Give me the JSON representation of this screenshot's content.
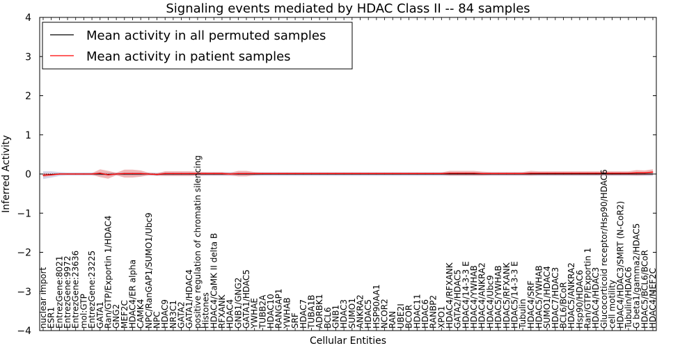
{
  "chart_data": {
    "type": "line",
    "title": "Signaling events mediated by HDAC Class II -- 84 samples",
    "xlabel": "Cellular Entities",
    "ylabel": "Inferred Activity",
    "ylim": [
      -4,
      4
    ],
    "yticks": [
      "4",
      "3",
      "2",
      "1",
      "0",
      "−1",
      "−2",
      "−3",
      "−4"
    ],
    "ytick_values": [
      4,
      3,
      2,
      1,
      0,
      -1,
      -2,
      -3,
      -4
    ],
    "grid": false,
    "legend_position": "top-left",
    "colors": {
      "permuted": "#000000",
      "patient": "#ff0000",
      "patient_band": "#e88a8a",
      "permuted_band": "#b8b8d8",
      "zero_line": "#000000",
      "axes": "#000000"
    },
    "categories": [
      "nuclear import",
      "ESR1",
      "EntrezGene:8021",
      "EntrezGene:9972",
      "EntrezGene:23636",
      "mol:GTP",
      "EntrezGene:23225",
      "GATA1",
      "Ran/GTP/Exportin 1/HDAC4",
      "GNG2",
      "MEF2C",
      "HDAC4/ER alpha",
      "CAMK4",
      "NPC/RanGAP1/SUMO1/Ubc9",
      "NPC",
      "HDAC9",
      "NR3C1",
      "GATA2",
      "GATA1/HDAC4",
      "positive regulation of chromatin silencing",
      "Histones",
      "HDAC4/CaMK II delta B",
      "RFXANK",
      "HDAC4",
      "GNB1/GNG2",
      "GATA1/HDAC5",
      "YWHAE",
      "TUBB2A",
      "HDAC10",
      "RANGAP1",
      "YWHAB",
      "SRF",
      "HDAC7",
      "TUBA1B",
      "ADRBK1",
      "BCL6",
      "GNB1",
      "HDAC3",
      "SUMO1",
      "ANKRA2",
      "HDAC5",
      "HSP90AA1",
      "NCOR2",
      "RAN",
      "UBE2I",
      "BCOR",
      "HDAC11",
      "HDAC6",
      "RANBP2",
      "XPO1",
      "HDAC4/RFXANK",
      "GATA2/HDAC5",
      "HDAC4/14-3-3 E",
      "HDAC4/YWHAB",
      "HDAC4/ANKRA2",
      "HDAC4/Ubc9",
      "HDAC5/YWHAB",
      "HDAC5/RFXANK",
      "HDAC5/14-3-3 E",
      "Tubulin",
      "HDAC4/SRF",
      "HDAC5/YWHAB",
      "SUMO1/HDAC4",
      "HDAC7/HDAC3",
      "BCL6/BCoR",
      "HDAC5/ANKRA2",
      "Hsp90/HDAC6",
      "Ran/GTP/Exportin 1",
      "HDAC4/HDAC3",
      "Glucocorticoid receptor/Hsp90/HDAC6",
      "cell motility",
      "HDAC4/HDAC3/SMRT (N-CoR2)",
      "Tubulin/HDAC6",
      "G beta1/gamma2/HDAC5",
      "HDAC5/BCL6/BCoR",
      "HDAC4/MEF2C"
    ],
    "series": [
      {
        "name": "Mean activity in all permuted samples",
        "color": "#000000",
        "values": [
          -0.03,
          -0.01,
          0,
          0,
          0,
          0,
          0,
          0,
          -0.01,
          0,
          0,
          0,
          0,
          0,
          -0.01,
          0,
          0,
          0,
          0,
          0,
          0,
          0,
          0,
          0,
          0,
          0,
          0,
          0,
          0,
          0,
          0,
          0,
          0,
          0,
          0,
          0,
          0,
          0,
          0,
          0,
          0,
          0,
          0,
          0,
          0,
          0,
          0,
          0,
          0,
          0,
          0,
          0,
          0,
          0,
          0,
          0,
          0,
          0,
          0,
          0,
          0,
          0,
          0,
          0,
          0,
          0,
          0,
          0,
          0,
          0,
          0,
          0,
          0,
          0,
          0,
          0
        ]
      },
      {
        "name": "Mean activity in patient samples",
        "color": "#ff0000",
        "values": [
          -0.03,
          -0.02,
          0,
          0,
          0,
          0,
          0,
          0.02,
          -0.02,
          0,
          0.01,
          0.01,
          0.01,
          0,
          -0.01,
          0.01,
          0.01,
          0.01,
          0.01,
          0.01,
          0.01,
          0.01,
          0.01,
          0,
          0.01,
          0.01,
          0.01,
          0.01,
          0.01,
          0.01,
          0.01,
          0.01,
          0.01,
          0.01,
          0.01,
          0.01,
          0.01,
          0.01,
          0.01,
          0.01,
          0.01,
          0.01,
          0.01,
          0.01,
          0.01,
          0.01,
          0.01,
          0.01,
          0.01,
          0.01,
          0.02,
          0.02,
          0.02,
          0.02,
          0.01,
          0.01,
          0.01,
          0.01,
          0.01,
          0.01,
          0.02,
          0.02,
          0.02,
          0.02,
          0.02,
          0.02,
          0.02,
          0.02,
          0.02,
          0.02,
          0.02,
          0.02,
          0.02,
          0.03,
          0.03,
          0.05
        ]
      }
    ],
    "bands": {
      "patient_halfwidth": [
        0.05,
        0.03,
        0.02,
        0.02,
        0.02,
        0.02,
        0.02,
        0.1,
        0.1,
        0.03,
        0.1,
        0.1,
        0.08,
        0.03,
        0.03,
        0.06,
        0.06,
        0.06,
        0.06,
        0.05,
        0.04,
        0.04,
        0.04,
        0.03,
        0.07,
        0.07,
        0.04,
        0.03,
        0.03,
        0.03,
        0.03,
        0.03,
        0.03,
        0.03,
        0.03,
        0.03,
        0.03,
        0.03,
        0.03,
        0.03,
        0.03,
        0.03,
        0.03,
        0.03,
        0.03,
        0.03,
        0.03,
        0.03,
        0.03,
        0.03,
        0.06,
        0.06,
        0.06,
        0.06,
        0.05,
        0.04,
        0.04,
        0.04,
        0.04,
        0.04,
        0.06,
        0.05,
        0.05,
        0.05,
        0.05,
        0.05,
        0.05,
        0.05,
        0.05,
        0.05,
        0.05,
        0.05,
        0.05,
        0.07,
        0.06,
        0.07
      ],
      "permuted_halfwidth": [
        0.1,
        0.08,
        0.05,
        0.04,
        0.04,
        0.04,
        0.04,
        0.05,
        0.05,
        0.04,
        0.05,
        0.05,
        0.05,
        0.04,
        0.04,
        0.05,
        0.05,
        0.05,
        0.05,
        0.05,
        0.05,
        0.05,
        0.05,
        0.05,
        0.05,
        0.05,
        0.05,
        0.05,
        0.05,
        0.05,
        0.05,
        0.05,
        0.05,
        0.05,
        0.05,
        0.05,
        0.05,
        0.05,
        0.05,
        0.05,
        0.05,
        0.05,
        0.05,
        0.05,
        0.05,
        0.05,
        0.05,
        0.05,
        0.05,
        0.05,
        0.05,
        0.05,
        0.05,
        0.05,
        0.05,
        0.05,
        0.05,
        0.05,
        0.05,
        0.05,
        0.05,
        0.05,
        0.05,
        0.05,
        0.05,
        0.05,
        0.05,
        0.05,
        0.05,
        0.05,
        0.05,
        0.05,
        0.05,
        0.05,
        0.05,
        0.05
      ]
    }
  }
}
